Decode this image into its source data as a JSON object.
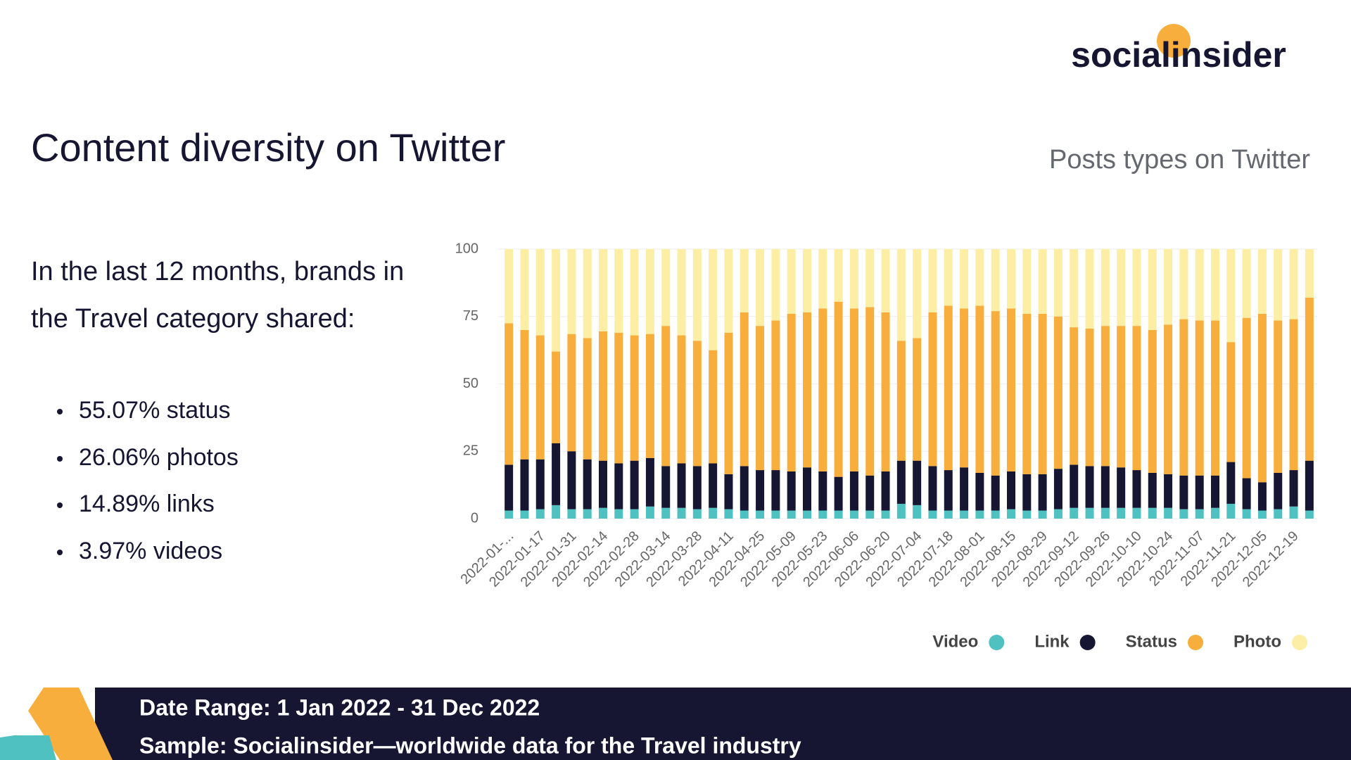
{
  "header": {
    "logo": "socialinsider"
  },
  "title": "Content diversity on Twitter",
  "intro": [
    "In the last 12 months, brands in",
    "the Travel category shared:"
  ],
  "bullets": [
    "55.07% status",
    "26.06% photos",
    "14.89% links",
    "3.97% videos"
  ],
  "footer": [
    "Date Range: 1 Jan 2022 - 31 Dec 2022",
    "Sample: Socialinsider—worldwide data for the Travel industry"
  ],
  "chart_data": {
    "type": "stacked_bar",
    "title": "Posts types on Twitter",
    "categories": [
      "2022-01-...",
      null,
      "2022-01-17",
      null,
      "2022-01-31",
      null,
      "2022-02-14",
      null,
      "2022-02-28",
      null,
      "2022-03-14",
      null,
      "2022-03-28",
      null,
      "2022-04-11",
      null,
      "2022-04-25",
      null,
      "2022-05-09",
      null,
      "2022-05-23",
      null,
      "2022-06-06",
      null,
      "2022-06-20",
      null,
      "2022-07-04",
      null,
      "2022-07-18",
      null,
      "2022-08-01",
      null,
      "2022-08-15",
      null,
      "2022-08-29",
      null,
      "2022-09-12",
      null,
      "2022-09-26",
      null,
      "2022-10-10",
      null,
      "2022-10-24",
      null,
      "2022-11-07",
      null,
      "2022-11-21",
      null,
      "2022-12-05",
      null,
      "2022-12-19",
      null
    ],
    "series": [
      {
        "name": "Video",
        "color": "#4fc1c0",
        "values": [
          3,
          3,
          3.5,
          5,
          3.5,
          3.5,
          4,
          3.5,
          3.5,
          4.5,
          4,
          4,
          3.5,
          4,
          3.5,
          3,
          3,
          3,
          3,
          3,
          3,
          3,
          3,
          3,
          3,
          5.5,
          5,
          3,
          3,
          3,
          3,
          3,
          3.5,
          3,
          3,
          3.5,
          4,
          4,
          4,
          4,
          4,
          4,
          4,
          3.5,
          3.5,
          4,
          5.5,
          3.5,
          3,
          3.5,
          4.5,
          3
        ]
      },
      {
        "name": "Link",
        "color": "#161632",
        "values": [
          17,
          19,
          18.5,
          23,
          21.5,
          18.5,
          17.5,
          17,
          18,
          18,
          15.5,
          16.5,
          16,
          16.5,
          13,
          16.5,
          15,
          15,
          14.5,
          16,
          14.5,
          12.5,
          14.5,
          13,
          14.5,
          16,
          16.5,
          16.5,
          15,
          16,
          14,
          13,
          14,
          13.5,
          13.5,
          15,
          16,
          15.5,
          15.5,
          15,
          14,
          13,
          12.5,
          12.5,
          12.5,
          12,
          15.5,
          11.5,
          10.5,
          13.5,
          13.5,
          18.5
        ]
      },
      {
        "name": "Status",
        "color": "#f8ae3c",
        "values": [
          52.5,
          48,
          46,
          34,
          43.5,
          45,
          48,
          48.5,
          46.5,
          46,
          52,
          47.5,
          46.5,
          42,
          52.5,
          57,
          53.5,
          55.5,
          58.5,
          57.5,
          60.5,
          65,
          60.5,
          62.5,
          59,
          44.5,
          45.5,
          57,
          61,
          59,
          62,
          61,
          60.5,
          59.5,
          59.5,
          56.5,
          51,
          51,
          52,
          52.5,
          53.5,
          53,
          55.5,
          58,
          57.5,
          57.5,
          44.5,
          59.5,
          62.5,
          56.5,
          56,
          60.5
        ]
      },
      {
        "name": "Photo",
        "color": "#fdeea6",
        "values": [
          27.5,
          30,
          32,
          38,
          31.5,
          33,
          30.5,
          31,
          32,
          31.5,
          28.5,
          32,
          34,
          37.5,
          31,
          23.5,
          28.5,
          26.5,
          24,
          23.5,
          22,
          19.5,
          22,
          21.5,
          23.5,
          34,
          33,
          23.5,
          21,
          22,
          21,
          23,
          22,
          24,
          24,
          25,
          29,
          29.5,
          28.5,
          28.5,
          28.5,
          30,
          28,
          26,
          26.5,
          26.5,
          34.5,
          25.5,
          24,
          26.5,
          26,
          18
        ]
      }
    ],
    "ylim": [
      0,
      100
    ],
    "yticks": [
      0,
      25,
      50,
      75,
      100
    ],
    "grid": true,
    "legend": "bottom-right"
  }
}
